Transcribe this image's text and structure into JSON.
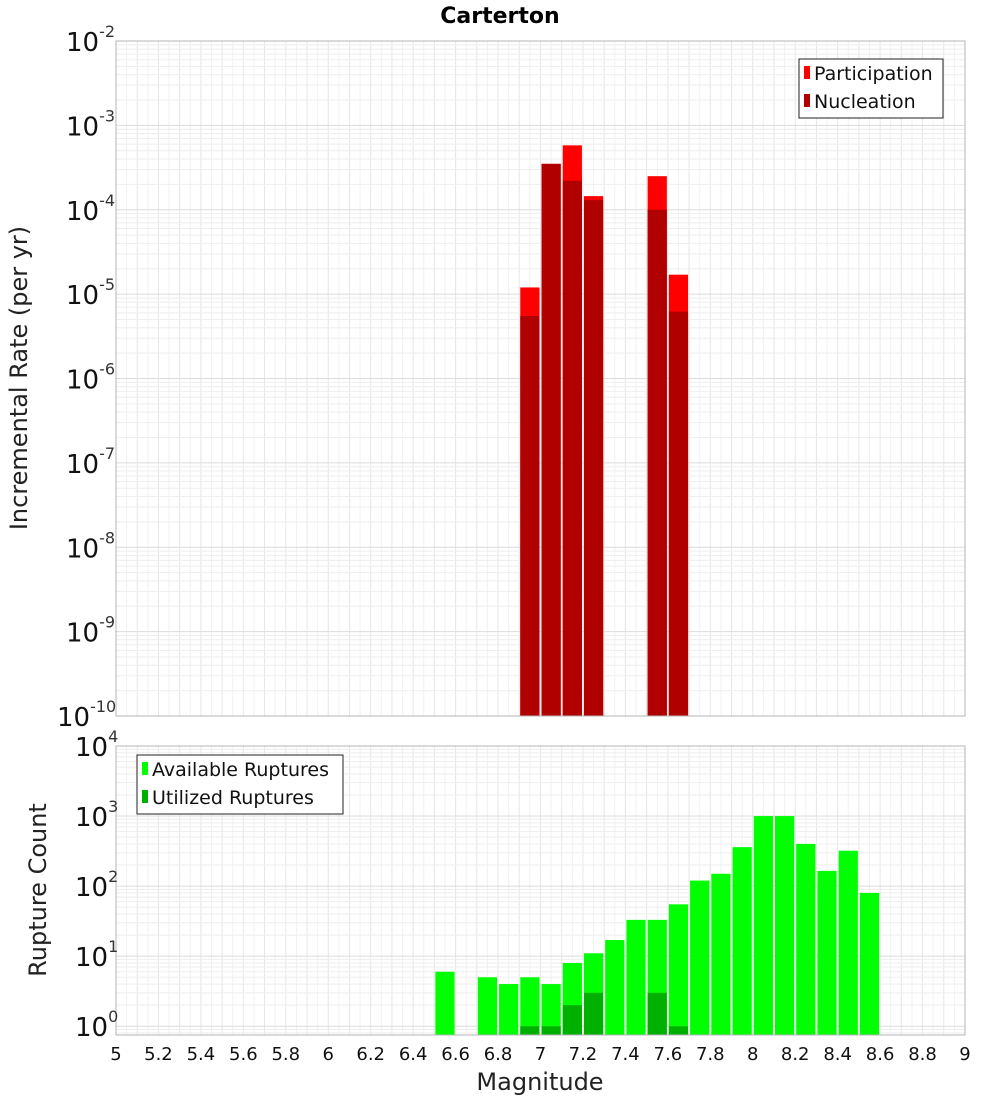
{
  "chart_data": [
    {
      "type": "bar",
      "title": "Carterton",
      "ylabel": "Incremental Rate (per yr)",
      "xlim": [
        5,
        9
      ],
      "ylim": [
        1e-10,
        0.01
      ],
      "yscale": "log",
      "grid": true,
      "legend_position": "top-right",
      "bar_width": 0.1,
      "series": [
        {
          "name": "Participation",
          "color": "#ff0000",
          "x": [
            6.95,
            7.05,
            7.15,
            7.25,
            7.55,
            7.65
          ],
          "values": [
            1.2e-05,
            0.00035,
            0.00058,
            0.000145,
            0.00025,
            1.7e-05
          ]
        },
        {
          "name": "Nucleation",
          "color": "#b00000",
          "x": [
            6.95,
            7.05,
            7.15,
            7.25,
            7.55,
            7.65
          ],
          "values": [
            5.5e-06,
            0.00035,
            0.00022,
            0.00013,
            0.0001,
            6.2e-06
          ]
        }
      ],
      "ytick_labels": [
        {
          "base": "10",
          "exp": "-10",
          "v": 1e-10
        },
        {
          "base": "10",
          "exp": "-9",
          "v": 1e-09
        },
        {
          "base": "10",
          "exp": "-8",
          "v": 1e-08
        },
        {
          "base": "10",
          "exp": "-7",
          "v": 1e-07
        },
        {
          "base": "10",
          "exp": "-6",
          "v": 1e-06
        },
        {
          "base": "10",
          "exp": "-5",
          "v": 1e-05
        },
        {
          "base": "10",
          "exp": "-4",
          "v": 0.0001
        },
        {
          "base": "10",
          "exp": "-3",
          "v": 0.001
        },
        {
          "base": "10",
          "exp": "-2",
          "v": 0.01
        }
      ]
    },
    {
      "type": "bar",
      "xlabel": "Magnitude",
      "ylabel": "Rupture Count",
      "xlim": [
        5,
        9
      ],
      "ylim": [
        0.75,
        10000.0
      ],
      "yscale": "log",
      "grid": true,
      "legend_position": "top-left",
      "bar_width": 0.1,
      "series": [
        {
          "name": "Available Ruptures",
          "color": "#00ff00",
          "x": [
            6.55,
            6.75,
            6.85,
            6.95,
            7.05,
            7.15,
            7.25,
            7.35,
            7.45,
            7.55,
            7.65,
            7.75,
            7.85,
            7.95,
            8.05,
            8.15,
            8.25,
            8.35,
            8.45,
            8.55
          ],
          "values": [
            6,
            5,
            4,
            5,
            4,
            8,
            11,
            17,
            33,
            33,
            55,
            120,
            150,
            360,
            1000,
            1000,
            400,
            165,
            320,
            80
          ]
        },
        {
          "name": "Utilized Ruptures",
          "color": "#00b000",
          "x": [
            6.95,
            7.05,
            7.15,
            7.25,
            7.55,
            7.65
          ],
          "values": [
            1,
            1,
            2,
            3,
            3,
            1
          ]
        }
      ],
      "ytick_labels": [
        {
          "base": "10",
          "exp": "0",
          "v": 1
        },
        {
          "base": "10",
          "exp": "1",
          "v": 10
        },
        {
          "base": "10",
          "exp": "2",
          "v": 100
        },
        {
          "base": "10",
          "exp": "3",
          "v": 1000
        },
        {
          "base": "10",
          "exp": "4",
          "v": 10000
        }
      ],
      "xtick_labels": [
        "5",
        "5.2",
        "5.4",
        "5.6",
        "5.8",
        "6",
        "6.2",
        "6.4",
        "6.6",
        "6.8",
        "7",
        "7.2",
        "7.4",
        "7.6",
        "7.8",
        "8",
        "8.2",
        "8.4",
        "8.6",
        "8.8",
        "9"
      ]
    }
  ]
}
